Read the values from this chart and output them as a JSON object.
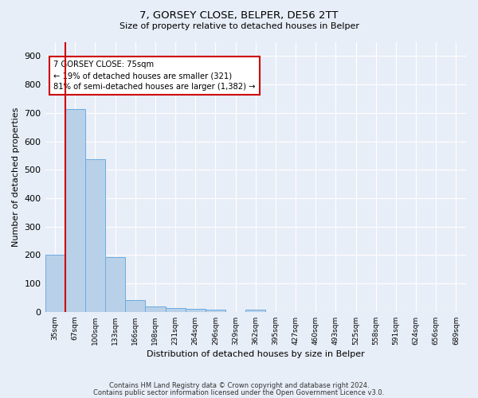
{
  "title1": "7, GORSEY CLOSE, BELPER, DE56 2TT",
  "title2": "Size of property relative to detached houses in Belper",
  "xlabel": "Distribution of detached houses by size in Belper",
  "ylabel": "Number of detached properties",
  "bar_labels": [
    "35sqm",
    "67sqm",
    "100sqm",
    "133sqm",
    "166sqm",
    "198sqm",
    "231sqm",
    "264sqm",
    "296sqm",
    "329sqm",
    "362sqm",
    "395sqm",
    "427sqm",
    "460sqm",
    "493sqm",
    "525sqm",
    "558sqm",
    "591sqm",
    "624sqm",
    "656sqm",
    "689sqm"
  ],
  "bar_values": [
    201,
    714,
    537,
    194,
    42,
    19,
    14,
    12,
    9,
    0,
    9,
    0,
    0,
    0,
    0,
    0,
    0,
    0,
    0,
    0,
    0
  ],
  "bar_color": "#b8d0e8",
  "bar_edge_color": "#6aabe0",
  "red_line_x": 0.5,
  "red_line_color": "#cc0000",
  "annotation_text": "7 GORSEY CLOSE: 75sqm\n← 19% of detached houses are smaller (321)\n81% of semi-detached houses are larger (1,382) →",
  "annotation_box_color": "white",
  "annotation_box_edge": "#cc0000",
  "ylim": [
    0,
    950
  ],
  "yticks": [
    0,
    100,
    200,
    300,
    400,
    500,
    600,
    700,
    800,
    900
  ],
  "background_color": "#e8eef7",
  "grid_color": "white",
  "footer1": "Contains HM Land Registry data © Crown copyright and database right 2024.",
  "footer2": "Contains public sector information licensed under the Open Government Licence v3.0."
}
